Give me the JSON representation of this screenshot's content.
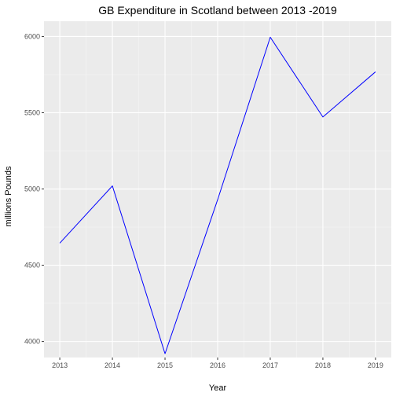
{
  "chart_data": {
    "type": "line",
    "title": "GB  Expenditure in Scotland between 2013 -2019",
    "xlabel": "Year",
    "ylabel": "millions Pounds",
    "x": [
      2013,
      2014,
      2015,
      2016,
      2017,
      2018,
      2019
    ],
    "series": [
      {
        "values": [
          4645,
          5020,
          3920,
          4930,
          5995,
          5472,
          5768
        ]
      }
    ],
    "xlim": [
      2012.7,
      2019.3
    ],
    "ylim": [
      3895,
      6100
    ],
    "xticks": [
      2013,
      2014,
      2015,
      2016,
      2017,
      2018,
      2019
    ],
    "yticks": [
      4000,
      4500,
      5000,
      5500,
      6000
    ],
    "grid": true,
    "legend": "none",
    "colors": {
      "line": "#0000ff",
      "panel_background": "#ebebeb",
      "grid_major": "#ffffff",
      "grid_minor": "#f5f5f5",
      "tick_label": "#4d4d4d"
    }
  }
}
